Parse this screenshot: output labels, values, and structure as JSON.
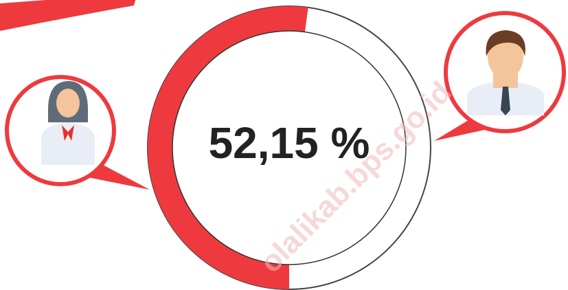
{
  "chart_data": {
    "type": "donut",
    "values": [
      52.15
    ],
    "value_labels": [
      "52,15 %"
    ],
    "color": "#ee3a3e",
    "watermark": "olalikab.bps.go.id"
  }
}
